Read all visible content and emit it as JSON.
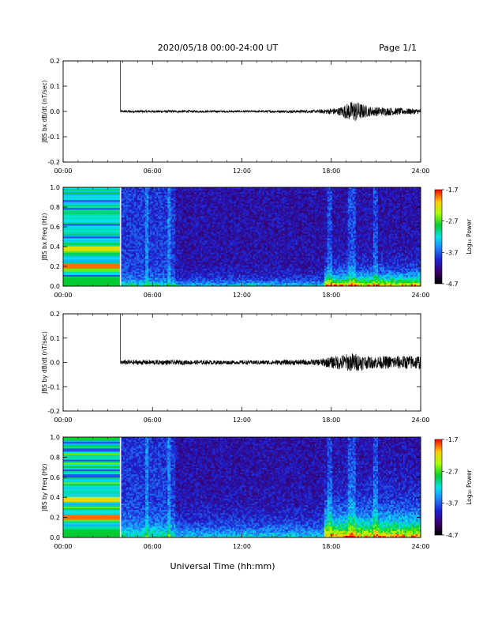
{
  "header": {
    "title": "2020/05/18  00:00-24:00 UT",
    "page": "Page 1/1"
  },
  "footer": {
    "xlabel": "Universal Time (hh:mm)"
  },
  "colorbar": {
    "title": "Log₁₀ Power",
    "ticks": [
      "-1.7",
      "-2.7",
      "-3.7",
      "-4.7"
    ],
    "tick_values": [
      -1.7,
      -2.7,
      -3.7,
      -4.7
    ],
    "range": [
      -4.7,
      -1.7
    ]
  },
  "x_ticks": [
    "00:00",
    "06:00",
    "12:00",
    "18:00",
    "24:00"
  ],
  "wave_y_ticks": [
    "0.2",
    "0.1",
    "0.0",
    "-0.1",
    "-0.2"
  ],
  "spec_y_ticks": [
    "1.0",
    "0.8",
    "0.6",
    "0.4",
    "0.2",
    "0.0"
  ],
  "chart_data": [
    {
      "type": "line",
      "ylabel": "JBS bx dB/dt (nT/sec)",
      "xlim": [
        0,
        24
      ],
      "ylim": [
        -0.2,
        0.2
      ],
      "series": [
        {
          "x": [
            0.0,
            3.85,
            3.85,
            6.0,
            12.0,
            17.0,
            18.5,
            19.5,
            20.5,
            24.0
          ],
          "values": [
            0.2,
            0.2,
            0.0,
            0.0,
            0.0,
            0.0,
            0.0,
            0.0,
            0.0,
            0.0
          ],
          "envelope": [
            0,
            0,
            0.005,
            0.005,
            0.004,
            0.006,
            0.015,
            0.045,
            0.02,
            0.01
          ]
        }
      ]
    },
    {
      "type": "heatmap",
      "ylabel": "JBS bx Freq (Hz)",
      "xlim": [
        0,
        24
      ],
      "ylim": [
        0.0,
        1.0
      ],
      "zlim": [
        -4.7,
        -1.7
      ],
      "notes": "00:00-03:50 banded fill; enhanced power below 0.1 Hz after 18:00"
    },
    {
      "type": "line",
      "ylabel": "JBS by dB/dt (nT/sec)",
      "xlim": [
        0,
        24
      ],
      "ylim": [
        -0.2,
        0.2
      ],
      "series": [
        {
          "x": [
            0.0,
            3.85,
            3.85,
            6.0,
            12.0,
            17.0,
            18.5,
            19.5,
            20.5,
            24.0
          ],
          "values": [
            0.2,
            0.2,
            0.0,
            0.0,
            0.0,
            0.0,
            0.0,
            0.0,
            0.0,
            0.0
          ],
          "envelope": [
            0,
            0,
            0.01,
            0.01,
            0.008,
            0.012,
            0.03,
            0.04,
            0.025,
            0.03
          ]
        }
      ]
    },
    {
      "type": "heatmap",
      "ylabel": "JBS by Freq (Hz)",
      "xlim": [
        0,
        24
      ],
      "ylim": [
        0.0,
        1.0
      ],
      "zlim": [
        -4.7,
        -1.7
      ],
      "notes": "00:00-03:50 banded fill; enhanced power below 0.2 Hz after 18:00"
    }
  ]
}
